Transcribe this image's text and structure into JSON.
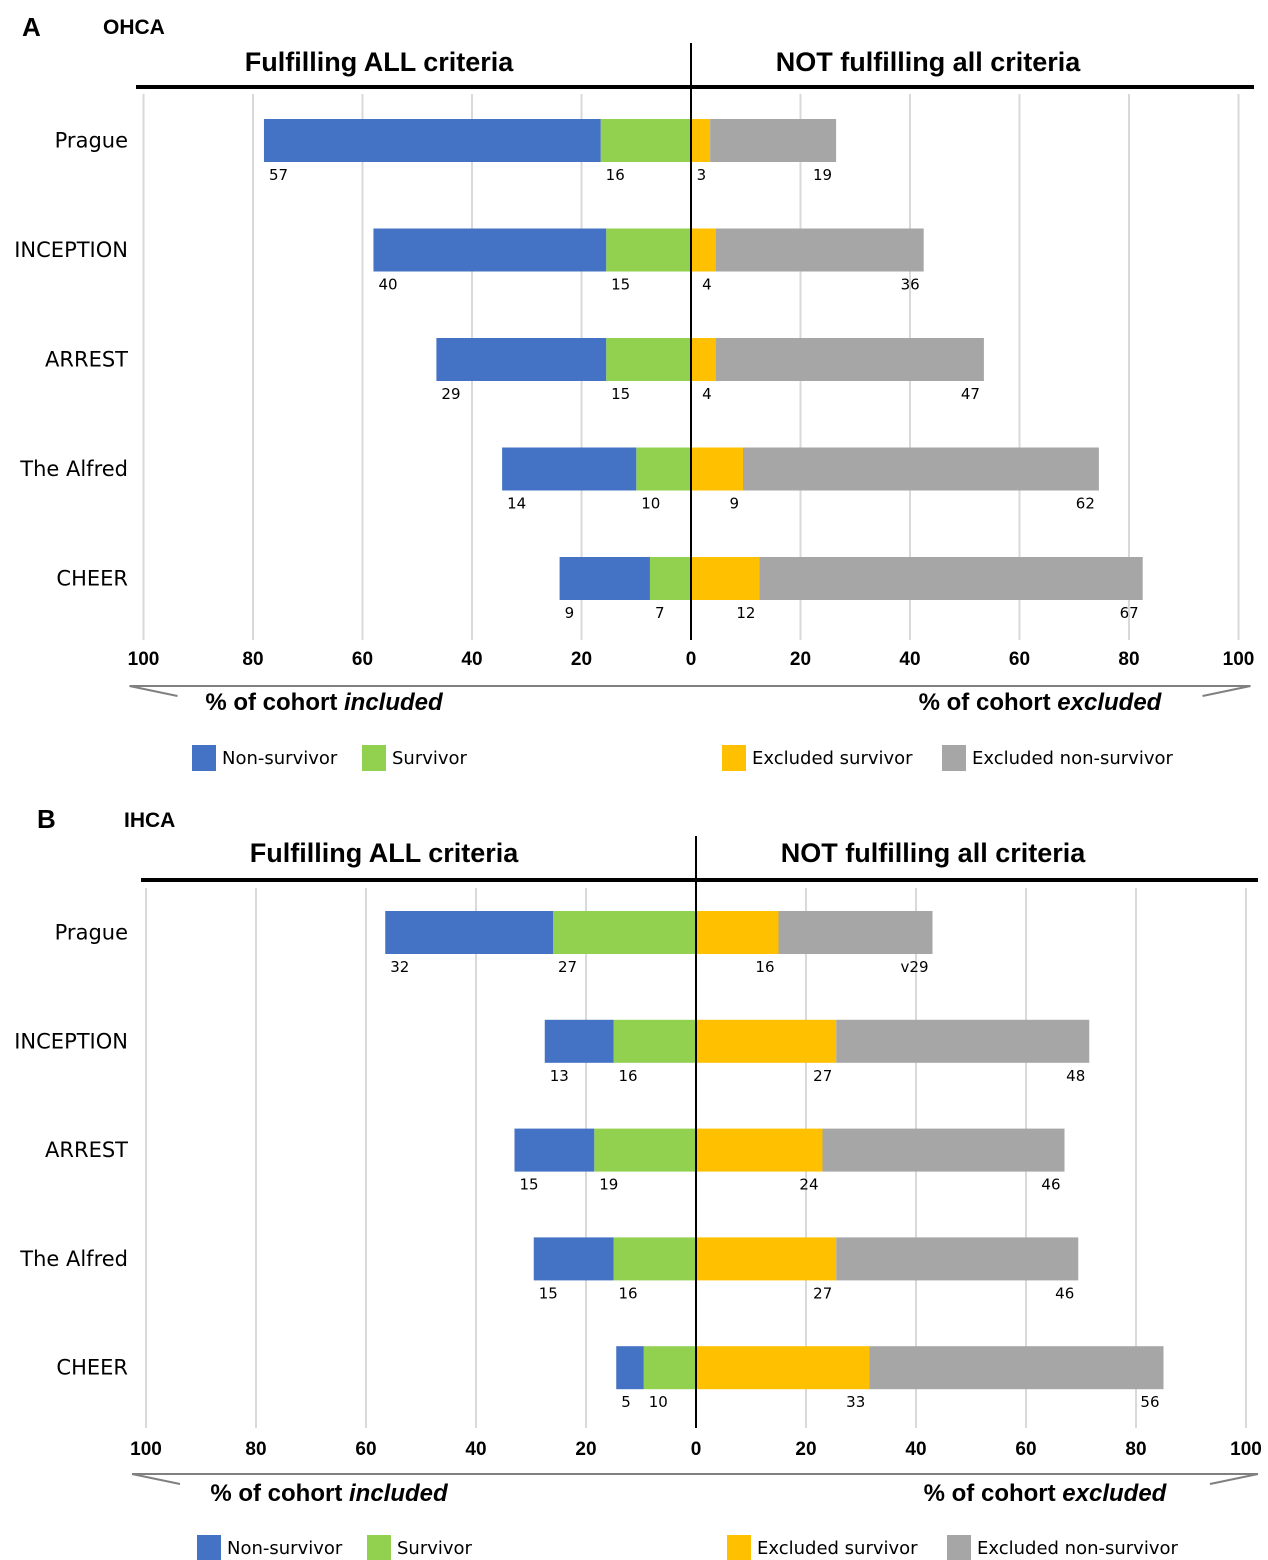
{
  "chart_data": [
    {
      "type": "bar",
      "orientation": "horizontal",
      "stacking": "diverging",
      "panel_letter": "A",
      "title": "OHCA",
      "header_left": "Fulfilling ALL criteria",
      "header_right": "NOT fulfilling all criteria",
      "categories": [
        "Prague",
        "INCEPTION",
        "ARREST",
        "The Alfred",
        "CHEER"
      ],
      "series": [
        {
          "name": "Non-survivor",
          "side": "included",
          "color": "#4472C4",
          "values": [
            57,
            40,
            29,
            14,
            9
          ]
        },
        {
          "name": "Survivor",
          "side": "included",
          "color": "#92D050",
          "values": [
            16,
            15,
            15,
            10,
            7
          ]
        },
        {
          "name": "Excluded survivor",
          "side": "excluded",
          "color": "#FFC000",
          "values": [
            3,
            4,
            4,
            9,
            12
          ]
        },
        {
          "name": "Excluded non-survivor",
          "side": "excluded",
          "color": "#A6A6A6",
          "values": [
            19,
            36,
            47,
            62,
            67
          ]
        }
      ],
      "bar_values": {
        "Non-survivor": [
          61.5,
          42.5,
          31,
          24.5,
          16.5
        ],
        "Survivor": [
          16.5,
          15.5,
          15.5,
          10,
          7.5
        ],
        "Excluded survivor": [
          3.5,
          4.5,
          4.5,
          9.5,
          12.5
        ],
        "Excluded non-survivor": [
          23,
          38,
          49,
          65,
          70
        ]
      },
      "data_labels": {
        "Non-survivor": [
          "57",
          "40",
          "29",
          "14",
          "9"
        ],
        "Survivor": [
          "16",
          "15",
          "15",
          "10",
          "7"
        ],
        "Excluded survivor": [
          "3",
          "4",
          "4",
          "9",
          "12"
        ],
        "Excluded non-survivor": [
          "19",
          "36",
          "47",
          "62",
          "67"
        ]
      },
      "xlim": [
        -100,
        100
      ],
      "x_ticks": [
        -100,
        -80,
        -60,
        -40,
        -20,
        0,
        20,
        40,
        60,
        80,
        100
      ],
      "x_tick_labels": [
        "100",
        "80",
        "60",
        "40",
        "20",
        "0",
        "20",
        "40",
        "60",
        "80",
        "100"
      ],
      "xlabel_left": {
        "prefix": "% of cohort ",
        "emph": "included"
      },
      "xlabel_right": {
        "prefix": "% of cohort ",
        "emph": "excluded"
      },
      "grid": true,
      "legend_position": "bottom"
    },
    {
      "type": "bar",
      "orientation": "horizontal",
      "stacking": "diverging",
      "panel_letter": "B",
      "title": "IHCA",
      "header_left": "Fulfilling ALL criteria",
      "header_right": "NOT fulfilling all criteria",
      "categories": [
        "Prague",
        "INCEPTION",
        "ARREST",
        "The Alfred",
        "CHEER"
      ],
      "series": [
        {
          "name": "Non-survivor",
          "side": "included",
          "color": "#4472C4",
          "values": [
            32,
            13,
            15,
            15,
            5
          ]
        },
        {
          "name": "Survivor",
          "side": "included",
          "color": "#92D050",
          "values": [
            27,
            16,
            19,
            16,
            10
          ]
        },
        {
          "name": "Excluded survivor",
          "side": "excluded",
          "color": "#FFC000",
          "values": [
            16,
            27,
            24,
            27,
            33
          ]
        },
        {
          "name": "Excluded non-survivor",
          "side": "excluded",
          "color": "#A6A6A6",
          "values": [
            29,
            48,
            46,
            46,
            56
          ]
        }
      ],
      "bar_values": {
        "Non-survivor": [
          30.5,
          12.5,
          14.5,
          14.5,
          5
        ],
        "Survivor": [
          26,
          15,
          18.5,
          15,
          9.5
        ],
        "Excluded survivor": [
          15,
          25.5,
          23,
          25.5,
          31.5
        ],
        "Excluded non-survivor": [
          28,
          46,
          44,
          44,
          53.5
        ]
      },
      "data_labels": {
        "Non-survivor": [
          "32",
          "13",
          "15",
          "15",
          "5"
        ],
        "Survivor": [
          "27",
          "16",
          "19",
          "16",
          "10"
        ],
        "Excluded survivor": [
          "16",
          "27",
          "24",
          "27",
          "33"
        ],
        "Excluded non-survivor": [
          "v29",
          "48",
          "46",
          "46",
          "56"
        ]
      },
      "xlim": [
        -100,
        100
      ],
      "x_ticks": [
        -100,
        -80,
        -60,
        -40,
        -20,
        0,
        20,
        40,
        60,
        80,
        100
      ],
      "x_tick_labels": [
        "100",
        "80",
        "60",
        "40",
        "20",
        "0",
        "20",
        "40",
        "60",
        "80",
        "100"
      ],
      "xlabel_left": {
        "prefix": "% of cohort ",
        "emph": "included"
      },
      "xlabel_right": {
        "prefix": "% of cohort ",
        "emph": "excluded"
      },
      "grid": true,
      "legend_position": "bottom"
    }
  ]
}
